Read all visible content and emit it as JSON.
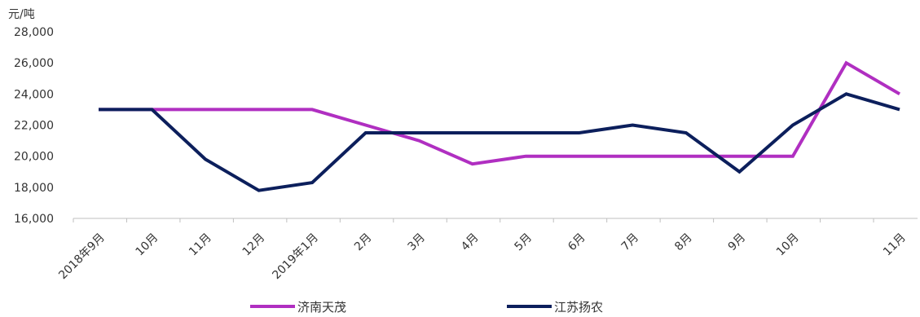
{
  "chart_data": {
    "type": "line",
    "unit_label": "元/吨",
    "ylim": [
      16000,
      28000
    ],
    "yticks": [
      16000,
      18000,
      20000,
      22000,
      24000,
      26000,
      28000
    ],
    "ytick_labels": [
      "16,000",
      "18,000",
      "20,000",
      "22,000",
      "24,000",
      "26,000",
      "28,000"
    ],
    "categories": [
      "2018年9月",
      "10月",
      "11月",
      "12月",
      "2019年1月",
      "2月",
      "3月",
      "4月",
      "5月",
      "6月",
      "7月",
      "8月",
      "9月",
      "10月",
      "",
      "11月"
    ],
    "legend_position": "bottom",
    "grid": false,
    "series": [
      {
        "name": "济南天茂",
        "color": "#b02fc1",
        "values": [
          23000,
          23000,
          23000,
          23000,
          23000,
          22000,
          21000,
          19500,
          20000,
          20000,
          20000,
          20000,
          20000,
          20000,
          26000,
          24000
        ]
      },
      {
        "name": "江苏扬农",
        "color": "#0c1f5c",
        "values": [
          23000,
          23000,
          19800,
          17800,
          18300,
          21500,
          21500,
          21500,
          21500,
          21500,
          22000,
          21500,
          19000,
          22000,
          24000,
          23000
        ]
      }
    ]
  }
}
